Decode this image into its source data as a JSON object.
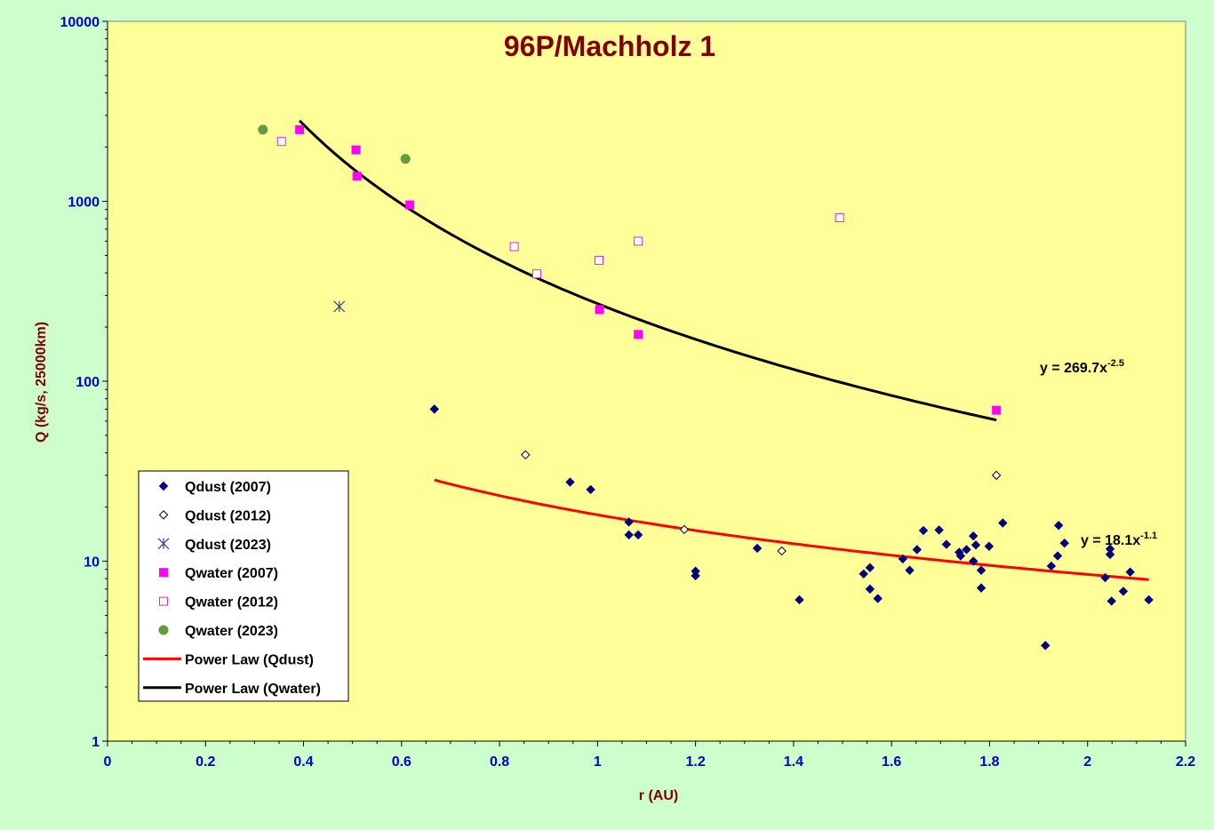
{
  "chart_data": {
    "type": "scatter",
    "title": "96P/Machholz 1",
    "xlabel": "r (AU)",
    "ylabel": "Q (kg/s, 25000km)",
    "xlim": [
      0,
      2.2
    ],
    "ylim": [
      1,
      10000
    ],
    "y_scale": "log",
    "x_ticks": [
      "0",
      "0.2",
      "0.4",
      "0.6",
      "0.8",
      "1",
      "1.2",
      "1.4",
      "1.6",
      "1.8",
      "2",
      "2.2"
    ],
    "y_ticks": [
      "1",
      "10",
      "100",
      "1000",
      "10000"
    ],
    "legend_position": "bottom-left",
    "plot_background": "#ffff99",
    "series": [
      {
        "name": "Qdust (2007)",
        "marker": "diamond-filled",
        "color": "#000080",
        "points": [
          [
            0.667,
            70
          ],
          [
            0.944,
            27.5
          ],
          [
            0.986,
            25
          ],
          [
            1.064,
            16.5
          ],
          [
            1.064,
            14
          ],
          [
            1.083,
            14
          ],
          [
            1.2,
            8.8
          ],
          [
            1.2,
            8.3
          ],
          [
            1.326,
            11.8
          ],
          [
            1.412,
            6.1
          ],
          [
            1.543,
            8.5
          ],
          [
            1.556,
            7
          ],
          [
            1.556,
            9.2
          ],
          [
            1.572,
            6.2
          ],
          [
            1.623,
            10.3
          ],
          [
            1.637,
            8.9
          ],
          [
            1.652,
            11.6
          ],
          [
            1.665,
            14.8
          ],
          [
            1.697,
            14.9
          ],
          [
            1.712,
            12.4
          ],
          [
            1.738,
            11.2
          ],
          [
            1.741,
            10.7
          ],
          [
            1.753,
            11.6
          ],
          [
            1.767,
            13.8
          ],
          [
            1.767,
            10
          ],
          [
            1.772,
            12.3
          ],
          [
            1.783,
            8.9
          ],
          [
            1.783,
            7.1
          ],
          [
            1.799,
            12.1
          ],
          [
            1.827,
            16.3
          ],
          [
            1.914,
            3.4
          ],
          [
            1.926,
            9.4
          ],
          [
            1.939,
            10.7
          ],
          [
            1.941,
            15.8
          ],
          [
            1.953,
            12.6
          ],
          [
            2.036,
            8.1
          ],
          [
            2.046,
            11.7
          ],
          [
            2.049,
            6
          ],
          [
            2.046,
            10.9
          ],
          [
            2.073,
            6.8
          ],
          [
            2.087,
            8.7
          ],
          [
            2.125,
            6.1
          ]
        ]
      },
      {
        "name": "Qdust (2012)",
        "marker": "diamond-open",
        "color": "#000000",
        "points": [
          [
            0.853,
            39
          ],
          [
            1.177,
            15
          ],
          [
            1.376,
            11.4
          ],
          [
            1.814,
            30
          ]
        ]
      },
      {
        "name": "Qdust (2023)",
        "marker": "star",
        "color": "#334488",
        "points": [
          [
            0.473,
            260
          ]
        ]
      },
      {
        "name": "Qwater (2007)",
        "marker": "square-filled",
        "color": "#ff00ff",
        "points": [
          [
            0.392,
            2500
          ],
          [
            0.507,
            1930
          ],
          [
            0.509,
            1380
          ],
          [
            0.617,
            955
          ],
          [
            1.004,
            250
          ],
          [
            1.083,
            182
          ],
          [
            1.814,
            69
          ]
        ]
      },
      {
        "name": "Qwater (2012)",
        "marker": "square-open",
        "color": "#cc33cc",
        "points": [
          [
            0.355,
            2150
          ],
          [
            0.83,
            560
          ],
          [
            0.876,
            395
          ],
          [
            1.003,
            470
          ],
          [
            1.083,
            600
          ],
          [
            1.494,
            810
          ]
        ]
      },
      {
        "name": "Qwater (2023)",
        "marker": "circle-filled",
        "color": "#669944",
        "points": [
          [
            0.317,
            2500
          ],
          [
            0.608,
            1720
          ]
        ]
      }
    ],
    "fits": [
      {
        "name": "Power Law (Qdust)",
        "color": "#ff0000",
        "a": 18.1,
        "b": -1.1,
        "x_range": [
          0.667,
          2.125
        ],
        "equation_base": "y = 18.1x",
        "equation_exp": "-1.1"
      },
      {
        "name": "Power Law (Qwater)",
        "color": "#000000",
        "a": 269.7,
        "b": -2.5,
        "x_range": [
          0.392,
          1.814
        ],
        "equation_base": "y = 269.7x",
        "equation_exp": "-2.5"
      }
    ]
  }
}
